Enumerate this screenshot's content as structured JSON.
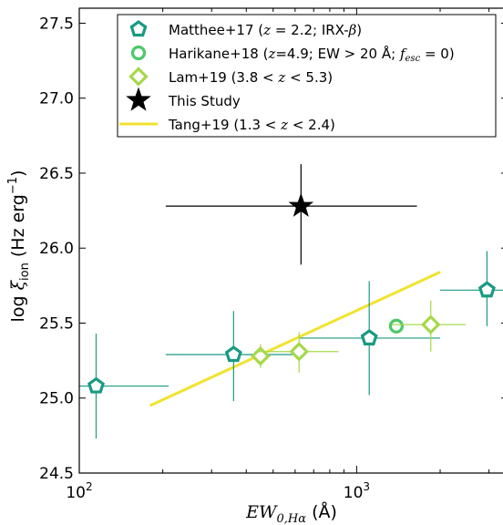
{
  "chart_data": {
    "type": "scatter",
    "xscale": "log",
    "xlim": [
      100,
      3500
    ],
    "ylim": [
      24.5,
      27.6
    ],
    "xlabel": "EW_{0,Hα} (Å)",
    "ylabel": "log ξ_ion (Hz erg⁻¹)",
    "grid": false,
    "legend_position": "top-right",
    "x_ticks": [
      {
        "value": 100,
        "label": "10",
        "exp": "2"
      },
      {
        "value": 1000,
        "label": "10",
        "exp": "3"
      }
    ],
    "y_ticks": [
      {
        "value": 24.5,
        "label": "24.5"
      },
      {
        "value": 25.0,
        "label": "25.0"
      },
      {
        "value": 25.5,
        "label": "25.5"
      },
      {
        "value": 26.0,
        "label": "26.0"
      },
      {
        "value": 26.5,
        "label": "26.5"
      },
      {
        "value": 27.0,
        "label": "27.0"
      },
      {
        "value": 27.5,
        "label": "27.5"
      }
    ],
    "series": [
      {
        "name": "Matthee+17 (z = 2.2; IRX-β)",
        "marker": "pentagon",
        "color": "#1a9a82",
        "points": [
          {
            "x": 115,
            "y": 25.08,
            "xerr": [
              60,
              210
            ],
            "yerr": [
              24.73,
              25.43
            ]
          },
          {
            "x": 360,
            "y": 25.29,
            "xerr": [
              205,
              650
            ],
            "yerr": [
              24.98,
              25.58
            ]
          },
          {
            "x": 1110,
            "y": 25.4,
            "xerr": [
              625,
              2000
            ],
            "yerr": [
              25.02,
              25.78
            ]
          },
          {
            "x": 2950,
            "y": 25.72,
            "xerr": [
              2000,
              4000
            ],
            "yerr": [
              25.48,
              25.98
            ]
          }
        ]
      },
      {
        "name": "Harikane+18 (z=4.9; EW > 20 Å; f_esc = 0)",
        "marker": "circle",
        "color": "#4dc868",
        "points": [
          {
            "x": 1390,
            "y": 25.48,
            "xerr": [
              1340,
              1440
            ],
            "yerr": [
              25.45,
              25.52
            ]
          }
        ]
      },
      {
        "name": "Lam+19 (3.8 < z < 5.3)",
        "marker": "diamond",
        "color": "#a6d84a",
        "points": [
          {
            "x": 450,
            "y": 25.28,
            "xerr": [
              420,
              490
            ],
            "yerr": [
              25.2,
              25.36
            ]
          },
          {
            "x": 620,
            "y": 25.31,
            "xerr": [
              430,
              860
            ],
            "yerr": [
              25.17,
              25.44
            ]
          },
          {
            "x": 1850,
            "y": 25.49,
            "xerr": [
              1340,
              2470
            ],
            "yerr": [
              25.31,
              25.65
            ]
          }
        ]
      },
      {
        "name": "This Study",
        "marker": "star",
        "color": "#000000",
        "points": [
          {
            "x": 630,
            "y": 26.28,
            "xerr": [
              205,
              1650
            ],
            "yerr": [
              25.89,
              26.56
            ]
          }
        ]
      },
      {
        "name": "Tang+19 (1.3 < z < 2.4)",
        "marker": "line",
        "color": "#f2e22e",
        "points": [
          {
            "x": 180,
            "y": 24.95
          },
          {
            "x": 2000,
            "y": 25.84
          }
        ]
      }
    ],
    "legend": [
      {
        "prefix": "Matthee+17 (",
        "math": "z",
        "suffix": " = 2.2; IRX-",
        "math2": "β",
        "suffix2": ")"
      },
      {
        "prefix": "Harikane+18 (",
        "math": "z",
        "suffix": "=4.9; EW > 20 Å; ",
        "math2": "f",
        "sub2": "esc",
        "suffix2": " = 0)"
      },
      {
        "prefix": "Lam+19 (3.8 < ",
        "math": "z",
        "suffix": " < 5.3)"
      },
      {
        "prefix": "This Study"
      },
      {
        "prefix": "Tang+19 (1.3 < ",
        "math": "z",
        "suffix": " < 2.4)"
      }
    ]
  }
}
